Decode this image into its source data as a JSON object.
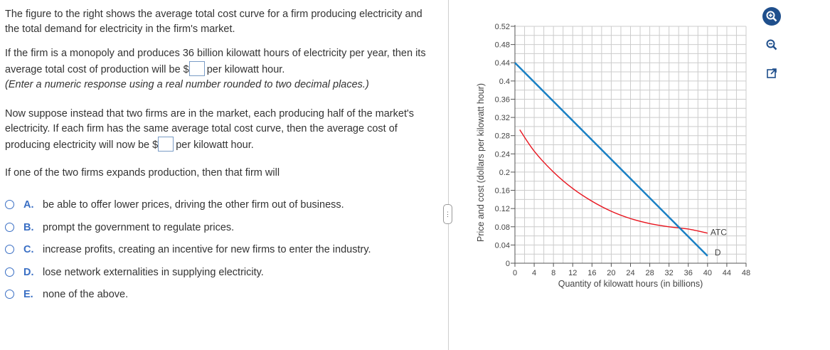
{
  "question": {
    "intro": "The figure to the right shows the average total cost curve for a firm producing electricity and the total demand for electricity in the firm's market.",
    "q1_before": "If the firm is a monopoly and produces 36 billion kilowatt hours of electricity per year, then its average total cost of production will be $",
    "q1_after": "per kilowatt hour.",
    "q1_hint": "(Enter a numeric response using a real number rounded to two decimal places.)",
    "q2_before": "Now suppose instead that two firms are in the market, each producing half of the market's electricity.  If each firm has the same average total cost curve, then the average cost of producing electricity will now be $",
    "q2_after": "per kilowatt hour.",
    "q3": "If one of the two firms expands production, then that firm will"
  },
  "options": [
    {
      "letter": "A.",
      "text": "be able to offer lower prices, driving the other firm out of business."
    },
    {
      "letter": "B.",
      "text": "prompt the government to regulate prices."
    },
    {
      "letter": "C.",
      "text": "increase profits, creating an incentive for new firms to enter the industry."
    },
    {
      "letter": "D.",
      "text": "lose network externalities in supplying electricity."
    },
    {
      "letter": "E.",
      "text": "none of the above."
    }
  ],
  "chart_data": {
    "type": "line",
    "xlabel": "Quantity of kilowatt hours (in billions)",
    "ylabel": "Price and cost (dollars per kilowatt hour)",
    "xlim": [
      0,
      48
    ],
    "ylim": [
      0,
      0.52
    ],
    "xticks": [
      0,
      4,
      8,
      12,
      16,
      20,
      24,
      28,
      32,
      36,
      40,
      44,
      48
    ],
    "yticks": [
      0,
      0.04,
      0.08,
      0.12,
      0.16,
      0.2,
      0.24,
      0.28,
      0.32,
      0.36,
      0.4,
      0.44,
      0.48,
      0.52
    ],
    "ytick_labels": [
      "0",
      "0.04",
      "0.08",
      "0.12",
      "0.16",
      "0.2",
      "0.24",
      "0.28",
      "0.32",
      "0.36",
      "0.4",
      "0.44",
      "0.48",
      "0.52"
    ],
    "grid": true,
    "series": [
      {
        "name": "ATC",
        "color": "#e8141e",
        "x": [
          1,
          4,
          8,
          12,
          16,
          20,
          24,
          28,
          32,
          36,
          40
        ],
        "y": [
          0.293,
          0.246,
          0.2,
          0.164,
          0.136,
          0.114,
          0.098,
          0.087,
          0.08,
          0.075,
          0.066
        ]
      },
      {
        "name": "D",
        "color": "#1a80c4",
        "x": [
          0,
          40
        ],
        "y": [
          0.44,
          0.016
        ]
      }
    ]
  },
  "icons": [
    "zoom-in-icon",
    "zoom-out-icon",
    "popout-icon"
  ]
}
